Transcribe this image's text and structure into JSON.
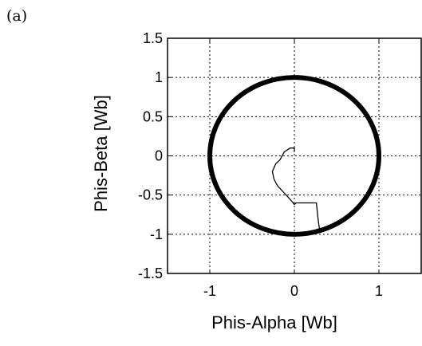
{
  "panel_label": "(a)",
  "chart_data": {
    "type": "line",
    "xlabel": "Phis-Alpha [Wb]",
    "ylabel": "Phis-Beta [Wb]",
    "xlim": [
      -1.5,
      1.5
    ],
    "ylim": [
      -1.5,
      1.5
    ],
    "xticks": [
      "-1",
      "0",
      "1"
    ],
    "yticks": [
      "1.5",
      "1",
      "0.5",
      "0",
      "-0.5",
      "-1",
      "-1.5"
    ],
    "grid": true,
    "grid_style": "dotted",
    "series": [
      {
        "style": "thick",
        "color": "#000000",
        "shape": "circle",
        "center": [
          0,
          0
        ],
        "radius": 1.0
      },
      {
        "style": "thin",
        "color": "#000000",
        "x": [
          0.0,
          0.0,
          -0.05,
          -0.12,
          -0.17,
          -0.22,
          -0.26,
          -0.24,
          -0.2,
          -0.14,
          -0.08,
          -0.03,
          0.0,
          0.02,
          0.04,
          0.1,
          0.18,
          0.26,
          0.27,
          0.28,
          0.29,
          0.3
        ],
        "y": [
          0.05,
          0.1,
          0.1,
          0.05,
          -0.05,
          -0.1,
          -0.2,
          -0.3,
          -0.38,
          -0.45,
          -0.52,
          -0.58,
          -0.62,
          -0.6,
          -0.6,
          -0.6,
          -0.6,
          -0.6,
          -0.7,
          -0.8,
          -0.88,
          -0.95
        ]
      }
    ]
  }
}
